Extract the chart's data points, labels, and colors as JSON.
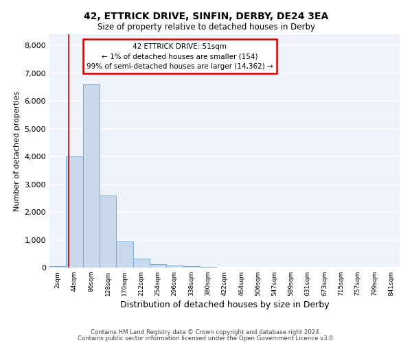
{
  "title_line1": "42, ETTRICK DRIVE, SINFIN, DERBY, DE24 3EA",
  "title_line2": "Size of property relative to detached houses in Derby",
  "xlabel": "Distribution of detached houses by size in Derby",
  "ylabel": "Number of detached properties",
  "bar_color": "#c8d9ee",
  "bar_edge_color": "#7aaad4",
  "annotation_box_color": "#cc0000",
  "property_line_color": "#cc0000",
  "property_size": 51,
  "annotation_text": "42 ETTRICK DRIVE: 51sqm\n← 1% of detached houses are smaller (154)\n99% of semi-detached houses are larger (14,362) →",
  "categories": [
    "2sqm",
    "44sqm",
    "86sqm",
    "128sqm",
    "170sqm",
    "212sqm",
    "254sqm",
    "296sqm",
    "338sqm",
    "380sqm",
    "422sqm",
    "464sqm",
    "506sqm",
    "547sqm",
    "589sqm",
    "631sqm",
    "673sqm",
    "715sqm",
    "757sqm",
    "799sqm",
    "841sqm"
  ],
  "bar_lefts": [
    2,
    44,
    86,
    128,
    170,
    212,
    254,
    296,
    338,
    380,
    422,
    464,
    506,
    547,
    589,
    631,
    673,
    715,
    757,
    799,
    841
  ],
  "bar_widths": [
    42,
    42,
    42,
    42,
    42,
    42,
    42,
    42,
    42,
    42,
    42,
    42,
    41,
    42,
    42,
    42,
    42,
    42,
    42,
    42,
    42
  ],
  "bar_heights": [
    60,
    4000,
    6600,
    2600,
    950,
    330,
    130,
    75,
    45,
    20,
    8,
    5,
    3,
    1,
    0,
    0,
    0,
    0,
    0,
    0,
    0
  ],
  "ylim": [
    0,
    8400
  ],
  "yticks": [
    0,
    1000,
    2000,
    3000,
    4000,
    5000,
    6000,
    7000,
    8000
  ],
  "background_color": "#eef2fa",
  "grid_color": "#ffffff",
  "footer_line1": "Contains HM Land Registry data © Crown copyright and database right 2024.",
  "footer_line2": "Contains public sector information licensed under the Open Government Licence v3.0."
}
